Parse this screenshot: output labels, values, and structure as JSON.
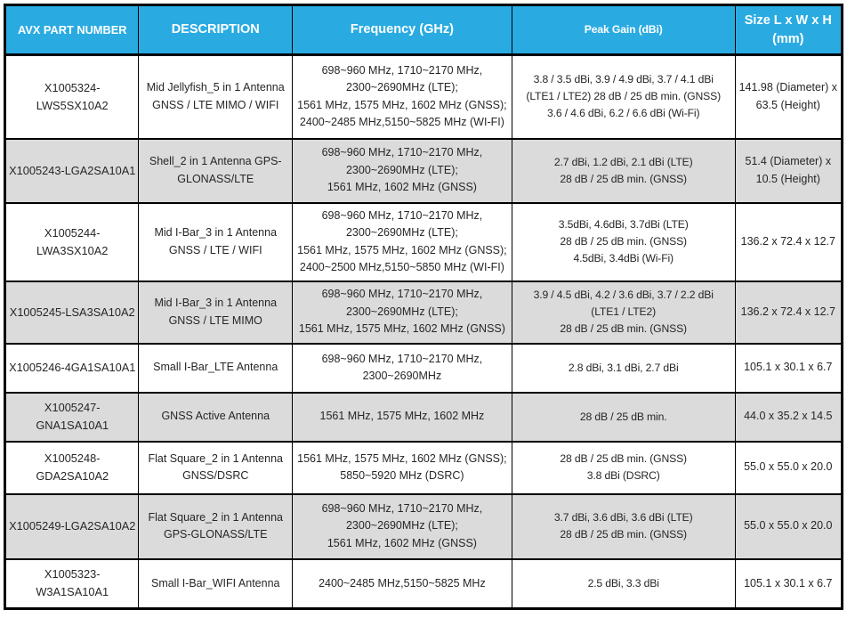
{
  "colors": {
    "header_bg": "#29ABE2",
    "header_text": "#FFFFFF",
    "row_alt_bg": "#DBDBDB",
    "row_bg": "#FFFFFF",
    "border": "#000000",
    "text": "#262626"
  },
  "table": {
    "columns": [
      {
        "key": "part",
        "label": "AVX PART NUMBER"
      },
      {
        "key": "desc",
        "label": "DESCRIPTION"
      },
      {
        "key": "freq",
        "label": "Frequency (GHz)"
      },
      {
        "key": "gain",
        "label": "Peak Gain (dBi)"
      },
      {
        "key": "size",
        "label": "Size L x W x H (mm)"
      }
    ],
    "rows": [
      {
        "part": "X1005324-LWS5SX10A2",
        "desc": "Mid Jellyfish_5 in 1 Antenna GNSS / LTE MIMO / WIFI",
        "freq": "698~960 MHz, 1710~2170 MHz,\n2300~2690MHz (LTE);\n1561 MHz, 1575 MHz, 1602 MHz (GNSS);\n2400~2485 MHz,5150~5825 MHz (WI-FI)",
        "gain": "3.8 / 3.5 dBi, 3.9 / 4.9 dBi, 3.7 / 4.1 dBi\n(LTE1 / LTE2) 28 dB / 25 dB min. (GNSS)\n3.6 / 4.6 dBi, 6.2 / 6.6 dBi (Wi-Fi)",
        "size": "141.98 (Diameter) x 63.5 (Height)"
      },
      {
        "part": "X1005243-LGA2SA10A1",
        "desc": "Shell_2 in 1 Antenna GPS-GLONASS/LTE",
        "freq": "698~960 MHz, 1710~2170 MHz,\n2300~2690MHz (LTE);\n1561 MHz, 1602 MHz (GNSS)",
        "gain": "2.7 dBi, 1.2 dBi, 2.1 dBi (LTE)\n28 dB / 25 dB min. (GNSS)",
        "size": "51.4 (Diameter) x 10.5 (Height)"
      },
      {
        "part": "X1005244-LWA3SX10A2",
        "desc": "Mid I-Bar_3 in 1 Antenna GNSS / LTE / WIFI",
        "freq": "698~960 MHz, 1710~2170 MHz,\n2300~2690MHz (LTE);\n1561 MHz, 1575 MHz, 1602 MHz (GNSS);\n2400~2500 MHz,5150~5850 MHz (WI-FI)",
        "gain": "3.5dBi, 4.6dBi, 3.7dBi (LTE)\n28 dB / 25 dB min. (GNSS)\n4.5dBi, 3.4dBi (Wi-Fi)",
        "size": "136.2 x 72.4 x 12.7"
      },
      {
        "part": "X1005245-LSA3SA10A2",
        "desc": "Mid I-Bar_3 in 1 Antenna GNSS / LTE MIMO",
        "freq": "698~960 MHz, 1710~2170 MHz,\n2300~2690MHz (LTE);\n1561 MHz, 1575 MHz, 1602 MHz (GNSS)",
        "gain": "3.9 / 4.5 dBi, 4.2 / 3.6 dBi, 3.7 / 2.2 dBi\n(LTE1 / LTE2)\n28 dB / 25 dB min. (GNSS)",
        "size": "136.2 x 72.4 x 12.7"
      },
      {
        "part": "X1005246-4GA1SA10A1",
        "desc": "Small I-Bar_LTE Antenna",
        "freq": "698~960 MHz, 1710~2170 MHz,\n2300~2690MHz",
        "gain": "2.8 dBi, 3.1 dBi, 2.7 dBi",
        "size": "105.1 x 30.1 x 6.7"
      },
      {
        "part": "X1005247-GNA1SA10A1",
        "desc": "GNSS Active Antenna",
        "freq": "1561 MHz, 1575 MHz, 1602 MHz",
        "gain": "28 dB / 25 dB min.",
        "size": "44.0 x 35.2 x 14.5"
      },
      {
        "part": "X1005248-GDA2SA10A2",
        "desc": "Flat Square_2 in 1 Antenna GNSS/DSRC",
        "freq": "1561 MHz, 1575 MHz, 1602 MHz (GNSS);\n5850~5920 MHz (DSRC)",
        "gain": "28 dB / 25 dB min. (GNSS)\n3.8 dBi (DSRC)",
        "size": "55.0 x 55.0 x 20.0"
      },
      {
        "part": "X1005249-LGA2SA10A2",
        "desc": "Flat Square_2 in 1 Antenna GPS-GLONASS/LTE",
        "freq": "698~960 MHz, 1710~2170 MHz,\n2300~2690MHz (LTE);\n1561 MHz, 1602 MHz (GNSS)",
        "gain": "3.7 dBi, 3.6 dBi, 3.6 dBi (LTE)\n28 dB / 25 dB min. (GNSS)",
        "size": "55.0 x 55.0 x 20.0"
      },
      {
        "part": "X1005323-W3A1SA10A1",
        "desc": "Small I-Bar_WIFI Antenna",
        "freq": "2400~2485 MHz,5150~5825 MHz",
        "gain": "2.5 dBi, 3.3 dBi",
        "size": "105.1 x 30.1 x 6.7"
      }
    ]
  }
}
